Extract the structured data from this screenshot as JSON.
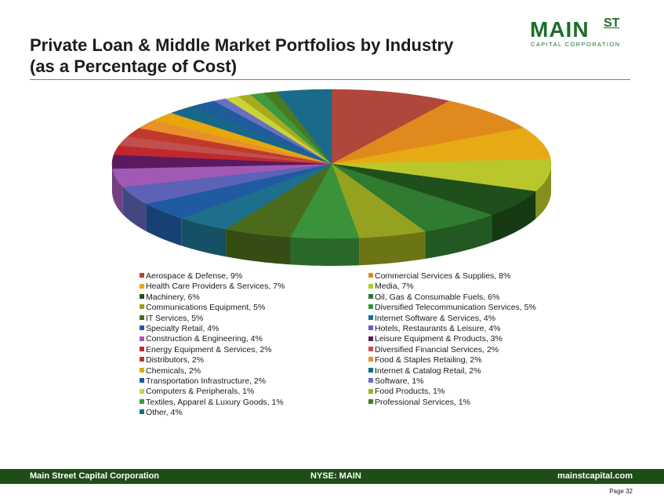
{
  "header": {
    "title_line1": "Private Loan & Middle Market Portfolios by Industry",
    "title_line2": "(as a Percentage of Cost)"
  },
  "logo": {
    "main": "MAIN",
    "st": "ST",
    "subtitle": "CAPITAL CORPORATION",
    "color": "#1e6e2b"
  },
  "footer": {
    "left": "Main Street Capital Corporation",
    "center": "NYSE: MAIN",
    "right": "mainstcapital.com",
    "page": "Page 32",
    "bar_color": "#1e4d17"
  },
  "chart_data": {
    "type": "pie",
    "legend_position": "bottom",
    "slices": [
      {
        "label": "Aerospace & Defense, 9%",
        "value": 9,
        "color": "#b0473a"
      },
      {
        "label": "Commercial Services & Supplies, 8%",
        "value": 8,
        "color": "#e08a1d"
      },
      {
        "label": "Health Care Providers & Services, 7%",
        "value": 7,
        "color": "#e7aa14"
      },
      {
        "label": "Media, 7%",
        "value": 7,
        "color": "#b9c72a"
      },
      {
        "label": "Machinery, 6%",
        "value": 6,
        "color": "#1f4f1a"
      },
      {
        "label": "Oil, Gas & Consumable Fuels, 6%",
        "value": 6,
        "color": "#2f7b2f"
      },
      {
        "label": "Communications Equipment, 5%",
        "value": 5,
        "color": "#94a21f"
      },
      {
        "label": "Diversified Telecommunication Services, 5%",
        "value": 5,
        "color": "#3a923a"
      },
      {
        "label": "IT Services, 5%",
        "value": 5,
        "color": "#4a6b1c"
      },
      {
        "label": "Internet Software & Services, 4%",
        "value": 4,
        "color": "#1d6f8c"
      },
      {
        "label": "Specialty Retail, 4%",
        "value": 4,
        "color": "#205aa0"
      },
      {
        "label": "Hotels, Restaurants & Leisure, 4%",
        "value": 4,
        "color": "#5c62b5"
      },
      {
        "label": "Construction & Engineering, 4%",
        "value": 4,
        "color": "#a05ab6"
      },
      {
        "label": "Leisure Equipment & Products, 3%",
        "value": 3,
        "color": "#5a1a5e"
      },
      {
        "label": "Energy Equipment & Services, 2%",
        "value": 2,
        "color": "#c1272d"
      },
      {
        "label": "Diversified Financial Services, 2%",
        "value": 2,
        "color": "#c0504d"
      },
      {
        "label": "Distributors, 2%",
        "value": 2,
        "color": "#c0392b"
      },
      {
        "label": "Food & Staples Retailing, 2%",
        "value": 2,
        "color": "#e8902a"
      },
      {
        "label": "Chemicals, 2%",
        "value": 2,
        "color": "#e6a70d"
      },
      {
        "label": "Internet & Catalog Retail, 2%",
        "value": 2,
        "color": "#17678a"
      },
      {
        "label": "Transportation Infrastructure, 2%",
        "value": 2,
        "color": "#1e5c9b"
      },
      {
        "label": "Software, 1%",
        "value": 1,
        "color": "#6a6fc4"
      },
      {
        "label": "Computers & Peripherals, 1%",
        "value": 1,
        "color": "#c8d43a"
      },
      {
        "label": "Food Products, 1%",
        "value": 1,
        "color": "#a9ab1e"
      },
      {
        "label": "Textiles, Apparel & Luxury Goods, 1%",
        "value": 1,
        "color": "#3e9a3e"
      },
      {
        "label": "Professional Services, 1%",
        "value": 1,
        "color": "#4b7a20"
      },
      {
        "label": "Other, 4%",
        "value": 4,
        "color": "#1a6a8a"
      }
    ]
  }
}
